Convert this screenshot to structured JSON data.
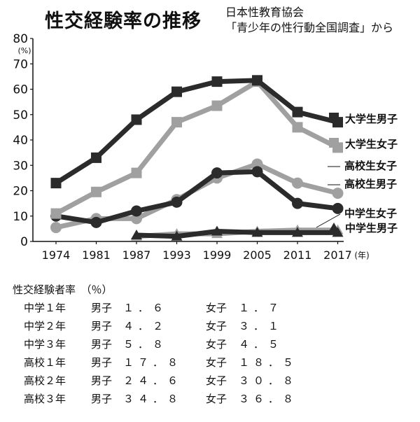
{
  "title": "性交経験率の推移",
  "source": {
    "line1": "日本性教育協会",
    "line2": "「青少年の性行動全国調査」から"
  },
  "chart_data": {
    "type": "line",
    "x": [
      "1974",
      "1981",
      "1987",
      "1993",
      "1999",
      "2005",
      "2011",
      "2017"
    ],
    "x_unit": "(年)",
    "y_unit": "(%)",
    "ylim": [
      0,
      80
    ],
    "yticks": [
      0,
      10,
      20,
      30,
      40,
      50,
      60,
      70,
      80
    ],
    "grid": false,
    "series": [
      {
        "name": "大学生男子",
        "color": "#2b2b2b",
        "marker": "square",
        "values": [
          23,
          33,
          48,
          59,
          63,
          63.5,
          51,
          47
        ]
      },
      {
        "name": "大学生女子",
        "color": "#a0a0a0",
        "marker": "square",
        "values": [
          11,
          19.5,
          27,
          47,
          53.5,
          63,
          45,
          37
        ]
      },
      {
        "name": "高校生女子",
        "color": "#a0a0a0",
        "marker": "circle",
        "values": [
          5.5,
          9,
          9,
          16.5,
          25,
          30.5,
          23,
          19
        ]
      },
      {
        "name": "高校生男子",
        "color": "#2b2b2b",
        "marker": "circle",
        "values": [
          10,
          7.5,
          12,
          15.5,
          27,
          27.5,
          15,
          13
        ]
      },
      {
        "name": "中学生女子",
        "color": "#a0a0a0",
        "marker": "triangle",
        "values": [
          null,
          null,
          2,
          3,
          3,
          4,
          4.5,
          4.5
        ]
      },
      {
        "name": "中学生男子",
        "color": "#2b2b2b",
        "marker": "triangle",
        "values": [
          null,
          null,
          2.5,
          2,
          4,
          3.5,
          3.5,
          3.5
        ]
      }
    ]
  },
  "table": {
    "title": "性交経験者率　（％）",
    "male_label": "男子",
    "female_label": "女子",
    "rows": [
      {
        "grade": "中学１年",
        "male": "１．６",
        "female": "１．７"
      },
      {
        "grade": "中学２年",
        "male": "４．２",
        "female": "３．１"
      },
      {
        "grade": "中学３年",
        "male": "５．８",
        "female": "４．５"
      },
      {
        "grade": "高校１年",
        "male": "１７．８",
        "female": "１８．５"
      },
      {
        "grade": "高校２年",
        "male": "２４．６",
        "female": "３０．８"
      },
      {
        "grade": "高校３年",
        "male": "３４．８",
        "female": "３６．８"
      }
    ]
  }
}
